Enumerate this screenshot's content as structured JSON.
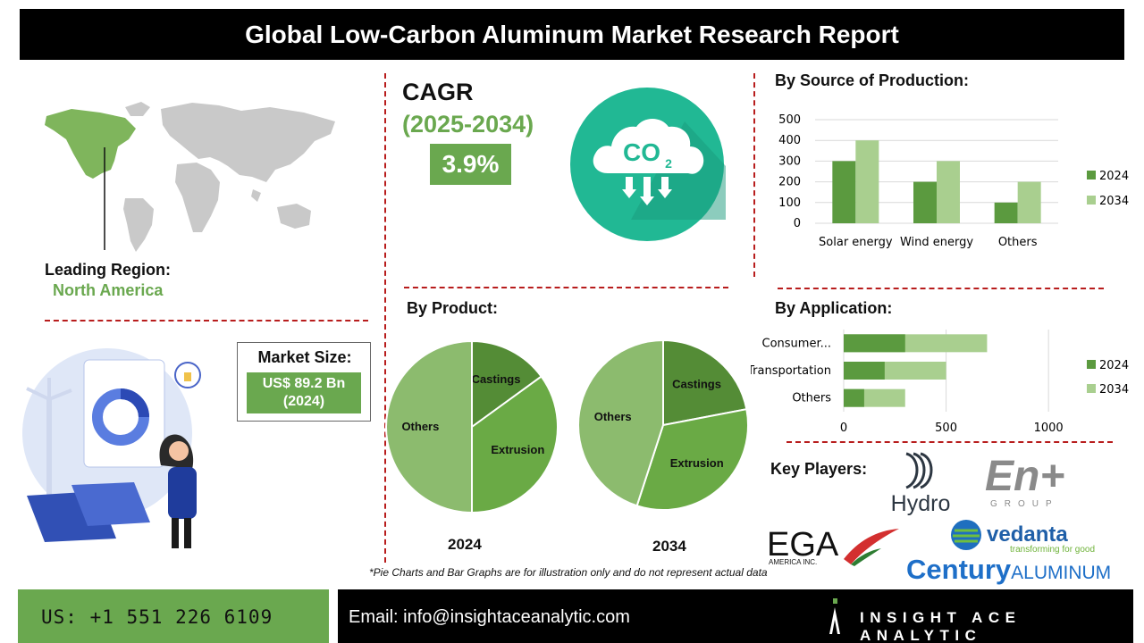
{
  "title": "Global Low-Carbon Aluminum Market Research Report",
  "cagr": {
    "label": "CAGR",
    "period": "(2025-2034)",
    "value": "3.9%",
    "icon_text": "CO",
    "icon_sub": "2"
  },
  "leading_region": {
    "label": "Leading Region:",
    "value": "North America"
  },
  "market_size": {
    "label": "Market Size:",
    "value_line1": "US$ 89.2 Bn",
    "value_line2": "(2024)"
  },
  "sections": {
    "source": "By Source of Production:",
    "product": "By Product:",
    "application": "By Application:",
    "players": "Key Players:"
  },
  "players": {
    "hydro": "Hydro",
    "enplus": "En+",
    "enplus_sub": "GROUP",
    "ega": "EGA",
    "ega_sub": "AMERICA INC.",
    "vedanta": "vedanta",
    "vedanta_sub": "transforming for good",
    "century": "Century",
    "century_suffix": "ALUMINUM"
  },
  "note": "*Pie Charts and Bar Graphs are for illustration only and do not represent actual data",
  "footer": {
    "phone": "US: +1 551 226 6109",
    "email": "Email: info@insightaceanalytic.com",
    "brand": "INSIGHT ACE ANALYTIC"
  },
  "colors": {
    "dark_green": "#5b9a3f",
    "light_green": "#a9cf8f",
    "accent_green": "#6aa84f",
    "pie_dark": "#548c36",
    "pie_mid": "#6aaa45",
    "pie_light": "#8cbb6e",
    "teal": "#21b894",
    "divider_red": "#b81d1d"
  },
  "chart_data": [
    {
      "type": "bar",
      "title": "By Source of Production:",
      "categories": [
        "Solar energy",
        "Wind energy",
        "Others"
      ],
      "series": [
        {
          "name": "2024",
          "values": [
            300,
            200,
            100
          ]
        },
        {
          "name": "2034",
          "values": [
            400,
            300,
            200
          ]
        }
      ],
      "ylim": [
        0,
        500
      ],
      "yticks": [
        "0",
        "100",
        "200",
        "300",
        "400",
        "500"
      ],
      "grid": true,
      "legend": "right"
    },
    {
      "type": "pie",
      "title": "By Product:",
      "caption": "2024",
      "labels": [
        "Castings",
        "Extrusion",
        "Others"
      ],
      "values": [
        15,
        35,
        50
      ]
    },
    {
      "type": "pie",
      "title": "By Product:",
      "caption": "2034",
      "labels": [
        "Castings",
        "Extrusion",
        "Others"
      ],
      "values": [
        22,
        33,
        45
      ]
    },
    {
      "type": "bar",
      "orientation": "horizontal",
      "title": "By Application:",
      "categories": [
        "Consumer...",
        "Transportation",
        "Others"
      ],
      "series": [
        {
          "name": "2024",
          "values": [
            300,
            200,
            100
          ]
        },
        {
          "name": "2034",
          "values": [
            700,
            500,
            300
          ]
        }
      ],
      "xlim": [
        0,
        1200
      ],
      "xticks": [
        "0",
        "500",
        "1000"
      ],
      "grid": true,
      "legend": "right"
    }
  ]
}
